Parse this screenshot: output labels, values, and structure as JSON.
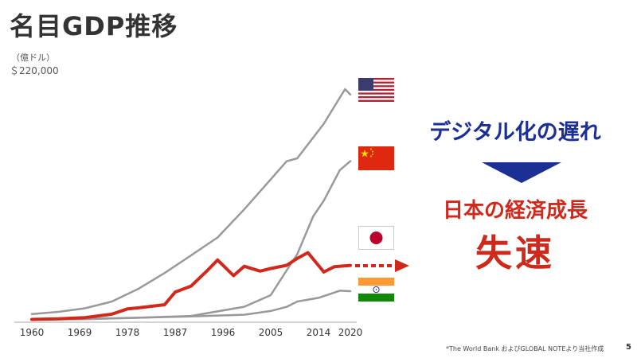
{
  "title": "名目GDP推移",
  "unit_label": "（億ドル）",
  "y_max_label": "＄220,000",
  "message": {
    "line1": "デジタル化の遅れ",
    "line2": "日本の経済成長",
    "line3": "失速"
  },
  "source_note": "*The World Bank およびGLOBAL NOTEより当社作成",
  "page_number": "5",
  "colors": {
    "japan": "#d0281a",
    "others": "#999999",
    "accent_blue": "#1b2f94",
    "arrow": "#d0281a"
  },
  "flags": [
    "us-flag-icon",
    "china-flag-icon",
    "japan-flag-icon",
    "india-flag-icon"
  ],
  "chart_data": {
    "type": "line",
    "x_ticks": [
      "1960",
      "1969",
      "1978",
      "1987",
      "1996",
      "2005",
      "2014",
      "2020"
    ],
    "ylim": [
      0,
      220000
    ],
    "series": [
      {
        "key": "us",
        "x": [
          1960,
          1965,
          1970,
          1975,
          1980,
          1985,
          1990,
          1995,
          2000,
          2005,
          2008,
          2010,
          2015,
          2019,
          2020
        ],
        "values": [
          5400,
          7400,
          10700,
          16800,
          28600,
          43400,
          59800,
          76400,
          102500,
          130400,
          147100,
          149900,
          182000,
          214000,
          209000
        ]
      },
      {
        "key": "china",
        "x": [
          1960,
          1970,
          1980,
          1990,
          2000,
          2005,
          2008,
          2010,
          2013,
          2015,
          2018,
          2020
        ],
        "values": [
          600,
          900,
          1900,
          3600,
          12100,
          22900,
          45900,
          60900,
          96000,
          110600,
          138900,
          147200
        ]
      },
      {
        "key": "japan",
        "x": [
          1960,
          1965,
          1970,
          1975,
          1978,
          1980,
          1985,
          1987,
          1990,
          1993,
          1995,
          1998,
          2000,
          2003,
          2005,
          2008,
          2010,
          2012,
          2015,
          2017,
          2020
        ],
        "values": [
          400,
          900,
          2100,
          5200,
          10100,
          11100,
          14000,
          25800,
          31300,
          45500,
          55500,
          41000,
          49700,
          45200,
          47600,
          50600,
          57000,
          62300,
          44400,
          49300,
          50500
        ]
      },
      {
        "key": "india",
        "x": [
          1960,
          1970,
          1980,
          1990,
          2000,
          2005,
          2008,
          2010,
          2014,
          2018,
          2020
        ],
        "values": [
          400,
          600,
          1900,
          3200,
          4700,
          8200,
          12000,
          17000,
          20400,
          27000,
          26600
        ]
      }
    ]
  }
}
